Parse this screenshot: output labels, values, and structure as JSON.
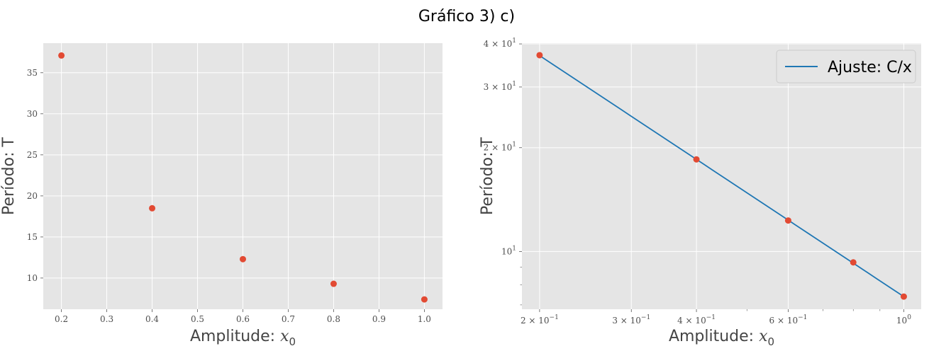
{
  "suptitle": "Gráfico 3) c)",
  "chart_data": [
    {
      "type": "scatter",
      "title": "",
      "xlabel": "Amplitude: x0",
      "xlabel_text": "Amplitude:",
      "xlabel_var": "x",
      "xlabel_sub": "0",
      "ylabel": "Período: T",
      "xlim": [
        0.16,
        1.04
      ],
      "ylim": [
        6.2,
        38.6
      ],
      "x_ticks": [
        0.2,
        0.3,
        0.4,
        0.5,
        0.6,
        0.7,
        0.8,
        0.9,
        1.0
      ],
      "x_tick_labels": [
        "0.2",
        "0.3",
        "0.4",
        "0.5",
        "0.6",
        "0.7",
        "0.8",
        "0.9",
        "1.0"
      ],
      "y_ticks": [
        10,
        15,
        20,
        25,
        30,
        35
      ],
      "y_tick_labels": [
        "10",
        "15",
        "20",
        "25",
        "30",
        "35"
      ],
      "grid": true,
      "series": [
        {
          "x": [
            0.2,
            0.4,
            0.6,
            0.8,
            1.0
          ],
          "y": [
            37.1,
            18.5,
            12.3,
            9.3,
            7.4
          ],
          "color": "#E24A33"
        }
      ]
    },
    {
      "type": "line",
      "title": "",
      "xscale": "log",
      "yscale": "log",
      "xlabel": "Amplitude: x0",
      "xlabel_text": "Amplitude:",
      "xlabel_var": "x",
      "xlabel_sub": "0",
      "ylabel": "Período: T",
      "xlim": [
        0.185,
        1.08
      ],
      "ylim": [
        6.8,
        40.2
      ],
      "x_ticks": [
        0.2,
        0.3,
        0.4,
        0.6,
        1.0
      ],
      "x_tick_labels": [
        {
          "base": "2 × 10",
          "exp": "−1"
        },
        {
          "base": "3 × 10",
          "exp": "−1"
        },
        {
          "base": "4 × 10",
          "exp": "−1"
        },
        {
          "base": "6 × 10",
          "exp": "−1"
        },
        {
          "base": "10",
          "exp": "0"
        }
      ],
      "y_ticks": [
        10,
        20,
        30,
        40
      ],
      "y_tick_labels": [
        {
          "base": "10",
          "exp": "1"
        },
        {
          "base": "2 × 10",
          "exp": "1"
        },
        {
          "base": "3 × 10",
          "exp": "1"
        },
        {
          "base": "4 × 10",
          "exp": "1"
        }
      ],
      "grid": true,
      "legend": {
        "position": "top-right",
        "entries": [
          "Ajuste: C/x"
        ]
      },
      "series": [
        {
          "name": "Ajuste: C/x",
          "kind": "line",
          "fit": "C/x",
          "C": 7.4,
          "x_range": [
            0.2,
            1.0
          ],
          "color": "#1f77b4"
        },
        {
          "kind": "scatter",
          "x": [
            0.2,
            0.4,
            0.6,
            0.8,
            1.0
          ],
          "y": [
            37.1,
            18.5,
            12.3,
            9.3,
            7.4
          ],
          "color": "#E24A33"
        }
      ]
    }
  ]
}
